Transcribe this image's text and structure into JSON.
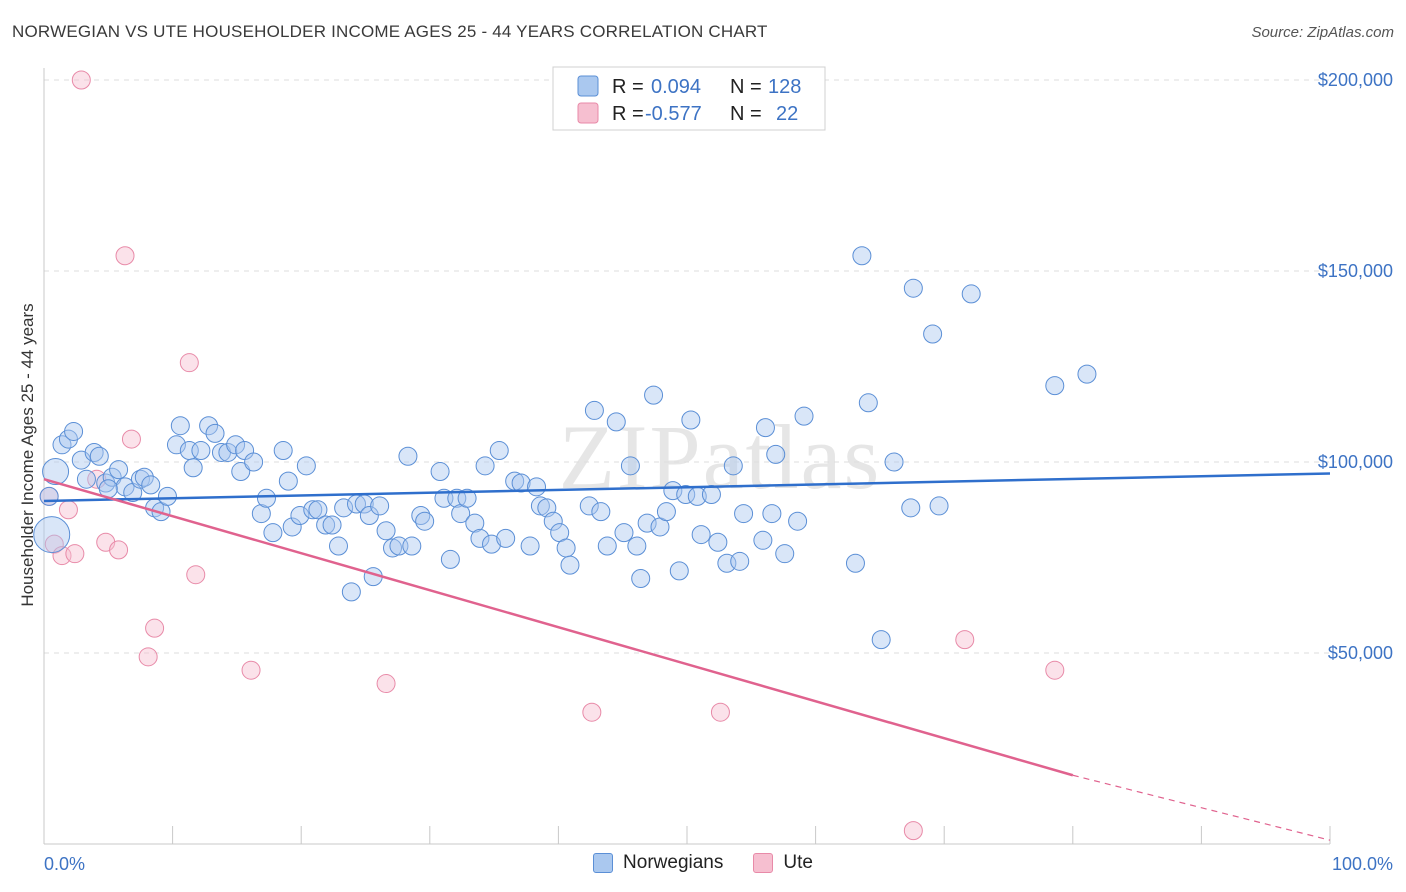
{
  "header": {
    "title": "NORWEGIAN VS UTE HOUSEHOLDER INCOME AGES 25 - 44 YEARS CORRELATION CHART",
    "source": "Source: ZipAtlas.com"
  },
  "watermark": "ZIPatlas",
  "legend_top": [
    {
      "r_label": "R =",
      "r_value": "0.094",
      "n_label": "N =",
      "n_value": "128"
    },
    {
      "r_label": "R =",
      "r_value": "-0.577",
      "n_label": "N =",
      "n_value": "22"
    }
  ],
  "legend_bottom": [
    "Norwegians",
    "Ute"
  ],
  "colors": {
    "norwegian_fill": "#aac8ef",
    "norwegian_stroke": "#5b8fd6",
    "norwegian_line": "#2f6fcc",
    "ute_fill": "#f6bfd0",
    "ute_stroke": "#e88aa8",
    "ute_line": "#e0628e",
    "tick_text": "#3d73c4",
    "grid": "#dddddd"
  },
  "chart_data": {
    "type": "scatter",
    "xlabel": "",
    "ylabel": "Householder Income Ages 25 - 44 years",
    "xlim": [
      0,
      100
    ],
    "ylim": [
      0,
      200000
    ],
    "x_tick_labels": [
      "0.0%",
      "100.0%"
    ],
    "y_ticks": [
      50000,
      100000,
      150000,
      200000
    ],
    "y_tick_labels": [
      "$50,000",
      "$100,000",
      "$150,000",
      "$200,000"
    ],
    "grid": true,
    "series": [
      {
        "name": "Norwegians",
        "r": 0.094,
        "n": 128,
        "trend": {
          "x": [
            0,
            100
          ],
          "y": [
            89800,
            97000
          ]
        },
        "points": [
          [
            0.6,
            81000,
            18
          ],
          [
            0.9,
            97500,
            13
          ],
          [
            1.4,
            104500,
            9
          ],
          [
            1.9,
            106000,
            9
          ],
          [
            2.3,
            108000,
            9
          ],
          [
            2.9,
            100500,
            9
          ],
          [
            3.3,
            95500,
            9
          ],
          [
            3.9,
            102500,
            9
          ],
          [
            4.3,
            101500,
            9
          ],
          [
            4.8,
            94500,
            9
          ],
          [
            5.3,
            96000,
            9
          ],
          [
            5.8,
            98000,
            9
          ],
          [
            6.3,
            93500,
            9
          ],
          [
            6.9,
            92000,
            9
          ],
          [
            7.5,
            95500,
            9
          ],
          [
            7.8,
            96000,
            9
          ],
          [
            8.3,
            94000,
            9
          ],
          [
            8.6,
            88000,
            9
          ],
          [
            9.1,
            87000,
            9
          ],
          [
            9.6,
            91000,
            9
          ],
          [
            10.3,
            104500,
            9
          ],
          [
            10.6,
            109500,
            9
          ],
          [
            11.3,
            103000,
            9
          ],
          [
            11.6,
            98500,
            9
          ],
          [
            12.2,
            103000,
            9
          ],
          [
            12.8,
            109500,
            9
          ],
          [
            13.3,
            107500,
            9
          ],
          [
            13.8,
            102500,
            9
          ],
          [
            14.3,
            102500,
            9
          ],
          [
            14.9,
            104500,
            9
          ],
          [
            15.3,
            97500,
            9
          ],
          [
            15.6,
            103000,
            9
          ],
          [
            16.3,
            100000,
            9
          ],
          [
            16.9,
            86500,
            9
          ],
          [
            17.3,
            90500,
            9
          ],
          [
            17.8,
            81500,
            9
          ],
          [
            18.6,
            103000,
            9
          ],
          [
            19.0,
            95000,
            9
          ],
          [
            19.3,
            83000,
            9
          ],
          [
            19.9,
            86000,
            9
          ],
          [
            20.4,
            99000,
            9
          ],
          [
            20.9,
            87500,
            9
          ],
          [
            21.3,
            87500,
            9
          ],
          [
            21.9,
            83500,
            9
          ],
          [
            22.4,
            83500,
            9
          ],
          [
            22.9,
            78000,
            9
          ],
          [
            23.3,
            88000,
            9
          ],
          [
            23.9,
            66000,
            9
          ],
          [
            24.3,
            89000,
            9
          ],
          [
            24.9,
            89000,
            9
          ],
          [
            25.3,
            86000,
            9
          ],
          [
            25.6,
            70000,
            9
          ],
          [
            26.1,
            88500,
            9
          ],
          [
            26.6,
            82000,
            9
          ],
          [
            27.1,
            77500,
            9
          ],
          [
            27.6,
            78000,
            9
          ],
          [
            28.3,
            101500,
            9
          ],
          [
            28.6,
            78000,
            9
          ],
          [
            29.3,
            86000,
            9
          ],
          [
            29.6,
            84500,
            9
          ],
          [
            30.8,
            97500,
            9
          ],
          [
            31.1,
            90500,
            9
          ],
          [
            31.6,
            74500,
            9
          ],
          [
            32.1,
            90500,
            9
          ],
          [
            32.4,
            86500,
            9
          ],
          [
            32.9,
            90500,
            9
          ],
          [
            33.5,
            84000,
            9
          ],
          [
            33.9,
            80000,
            9
          ],
          [
            34.3,
            99000,
            9
          ],
          [
            34.8,
            78500,
            9
          ],
          [
            35.4,
            103000,
            9
          ],
          [
            35.9,
            80000,
            9
          ],
          [
            36.6,
            95000,
            9
          ],
          [
            37.1,
            94500,
            9
          ],
          [
            37.8,
            78000,
            9
          ],
          [
            38.3,
            93500,
            9
          ],
          [
            38.6,
            88500,
            9
          ],
          [
            39.1,
            88000,
            9
          ],
          [
            39.6,
            84500,
            9
          ],
          [
            40.1,
            81500,
            9
          ],
          [
            40.6,
            77500,
            9
          ],
          [
            40.9,
            73000,
            9
          ],
          [
            42.4,
            88500,
            9
          ],
          [
            42.8,
            113500,
            9
          ],
          [
            43.3,
            87000,
            9
          ],
          [
            43.8,
            78000,
            9
          ],
          [
            44.5,
            110500,
            9
          ],
          [
            45.1,
            81500,
            9
          ],
          [
            45.6,
            99000,
            9
          ],
          [
            46.1,
            78000,
            9
          ],
          [
            46.4,
            69500,
            9
          ],
          [
            46.9,
            84000,
            9
          ],
          [
            47.4,
            117500,
            9
          ],
          [
            47.9,
            83000,
            9
          ],
          [
            48.4,
            87000,
            9
          ],
          [
            48.9,
            92500,
            9
          ],
          [
            49.4,
            71500,
            9
          ],
          [
            49.9,
            91500,
            9
          ],
          [
            50.3,
            111000,
            9
          ],
          [
            50.8,
            91000,
            9
          ],
          [
            51.1,
            81000,
            9
          ],
          [
            51.9,
            91500,
            9
          ],
          [
            52.4,
            79000,
            9
          ],
          [
            53.1,
            73500,
            9
          ],
          [
            53.6,
            99000,
            9
          ],
          [
            54.1,
            74000,
            9
          ],
          [
            54.4,
            86500,
            9
          ],
          [
            55.9,
            79500,
            9
          ],
          [
            56.1,
            109000,
            9
          ],
          [
            56.6,
            86500,
            9
          ],
          [
            56.9,
            102000,
            9
          ],
          [
            57.6,
            76000,
            9
          ],
          [
            58.6,
            84500,
            9
          ],
          [
            59.1,
            112000,
            9
          ],
          [
            63.1,
            73500,
            9
          ],
          [
            63.6,
            154000,
            9
          ],
          [
            64.1,
            115500,
            9
          ],
          [
            65.1,
            53500,
            9
          ],
          [
            66.1,
            100000,
            9
          ],
          [
            67.4,
            88000,
            9
          ],
          [
            67.6,
            145500,
            9
          ],
          [
            69.1,
            133500,
            9
          ],
          [
            69.6,
            88500,
            9
          ],
          [
            72.1,
            144000,
            9
          ],
          [
            78.6,
            120000,
            9
          ],
          [
            81.1,
            123000,
            9
          ],
          [
            0.4,
            91000,
            9
          ],
          [
            5.0,
            93000,
            9
          ]
        ]
      },
      {
        "name": "Ute",
        "r": -0.577,
        "n": 22,
        "trend": {
          "x": [
            0,
            80
          ],
          "y": [
            95500,
            18000
          ]
        },
        "trend_dashed": {
          "x": [
            80,
            100
          ],
          "y": [
            18000,
            1000
          ]
        },
        "points": [
          [
            0.4,
            91000,
            9
          ],
          [
            0.8,
            78500,
            9
          ],
          [
            1.4,
            75500,
            9
          ],
          [
            1.9,
            87500,
            9
          ],
          [
            2.4,
            76000,
            9
          ],
          [
            2.9,
            200000,
            9
          ],
          [
            4.1,
            95500,
            9
          ],
          [
            4.8,
            79000,
            9
          ],
          [
            5.8,
            77000,
            9
          ],
          [
            6.3,
            154000,
            9
          ],
          [
            6.8,
            106000,
            9
          ],
          [
            8.1,
            49000,
            9
          ],
          [
            8.6,
            56500,
            9
          ],
          [
            11.3,
            126000,
            9
          ],
          [
            11.8,
            70500,
            9
          ],
          [
            16.1,
            45500,
            9
          ],
          [
            26.6,
            42000,
            9
          ],
          [
            42.6,
            34500,
            9
          ],
          [
            52.6,
            34500,
            9
          ],
          [
            67.6,
            3500,
            9
          ],
          [
            71.6,
            53500,
            9
          ],
          [
            78.6,
            45500,
            9
          ]
        ]
      }
    ]
  }
}
